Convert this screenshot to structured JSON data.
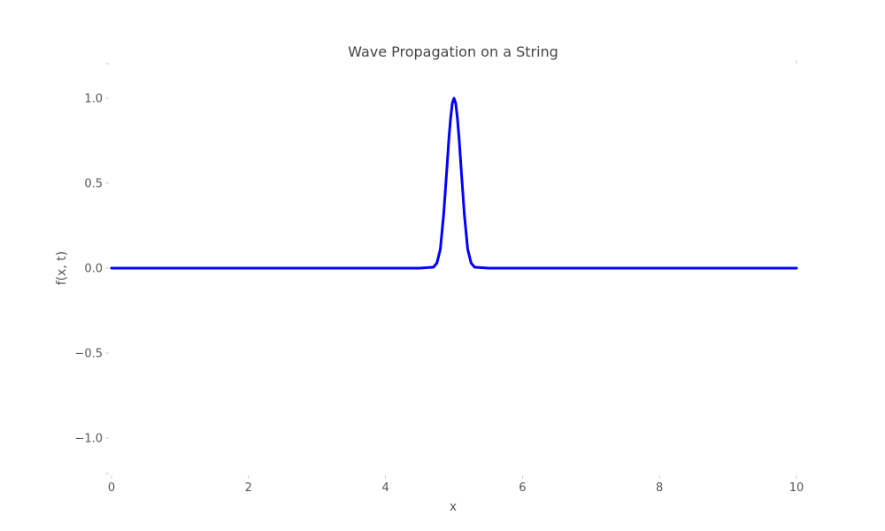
{
  "chart_data": {
    "type": "line",
    "title": "Wave Propagation on a String",
    "xlabel": "x",
    "ylabel": "f(x, t)",
    "xlim": [
      0,
      10
    ],
    "ylim": [
      -1.2,
      1.2
    ],
    "xticks": [
      0,
      2,
      4,
      6,
      8,
      10
    ],
    "yticks": [
      -1.0,
      -0.5,
      0.0,
      0.5,
      1.0
    ],
    "ytick_labels": [
      "−1.0",
      "−0.5",
      "0.0",
      "0.5",
      "1.0"
    ],
    "grid": false,
    "series": [
      {
        "color": "#0000ff",
        "x": [
          0,
          1,
          2,
          3,
          4,
          4.5,
          4.7,
          4.75,
          4.8,
          4.85,
          4.9,
          4.925,
          4.95,
          4.975,
          5.0,
          5.025,
          5.05,
          5.075,
          5.1,
          5.15,
          5.2,
          5.25,
          5.3,
          5.5,
          6,
          7,
          8,
          9,
          10
        ],
        "y": [
          0,
          0,
          0,
          0,
          0,
          0,
          0.006,
          0.03,
          0.11,
          0.32,
          0.61,
          0.76,
          0.88,
          0.97,
          1.0,
          0.97,
          0.88,
          0.76,
          0.61,
          0.32,
          0.11,
          0.03,
          0.006,
          0,
          0,
          0,
          0,
          0,
          0
        ]
      }
    ]
  }
}
